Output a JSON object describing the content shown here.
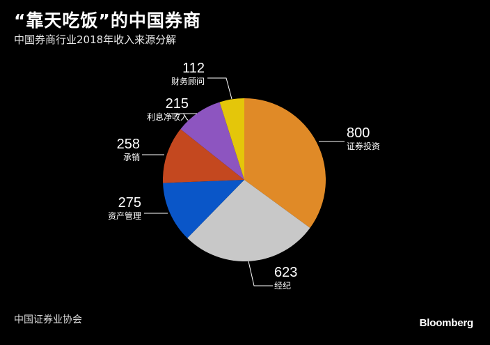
{
  "title": "“靠天吃饭”的中国券商",
  "subtitle": "中国券商行业2018年收入来源分解",
  "source": "中国证券业协会",
  "brand": "Bloomberg",
  "chart_data": {
    "type": "pie",
    "title": "“靠天吃饭”的中国券商",
    "subtitle": "中国券商行业2018年收入来源分解",
    "slices": [
      {
        "label": "证券投资",
        "value": 800,
        "color": "#e08a27"
      },
      {
        "label": "经纪",
        "value": 623,
        "color": "#c8c8c8"
      },
      {
        "label": "资产管理",
        "value": 275,
        "color": "#0a56c8"
      },
      {
        "label": "承销",
        "value": 258,
        "color": "#c4481f"
      },
      {
        "label": "利息净收入",
        "value": 215,
        "color": "#8d55c0"
      },
      {
        "label": "财务顾问",
        "value": 112,
        "color": "#e4c60a"
      }
    ]
  }
}
